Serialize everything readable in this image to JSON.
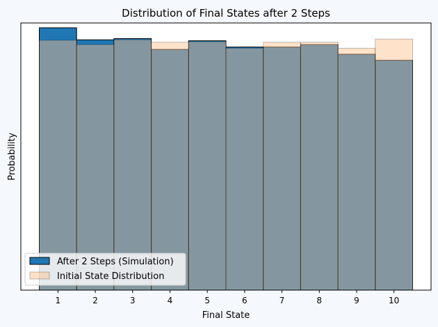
{
  "chart_data": {
    "type": "bar",
    "title": "Distribution of Final States after 2 Steps",
    "xlabel": "Final State",
    "ylabel": "Probability",
    "categories": [
      "1",
      "2",
      "3",
      "4",
      "5",
      "6",
      "7",
      "8",
      "9",
      "10"
    ],
    "series": [
      {
        "name": "After 2 Steps (Simulation)",
        "values": [
          0.109,
          0.104,
          0.1045,
          0.1,
          0.1036,
          0.101,
          0.101,
          0.102,
          0.098,
          0.0955
        ],
        "color": "#1f77b4",
        "opacity": 1.0
      },
      {
        "name": "Initial State Distribution",
        "values": [
          0.1038,
          0.102,
          0.104,
          0.103,
          0.1032,
          0.1005,
          0.103,
          0.103,
          0.1005,
          0.1043
        ],
        "color": "#ffbf8a",
        "opacity": 0.45
      }
    ],
    "ylim": [
      0,
      0.111
    ],
    "ytick_labels": false,
    "legend_position": "lower-left",
    "grid": false
  }
}
